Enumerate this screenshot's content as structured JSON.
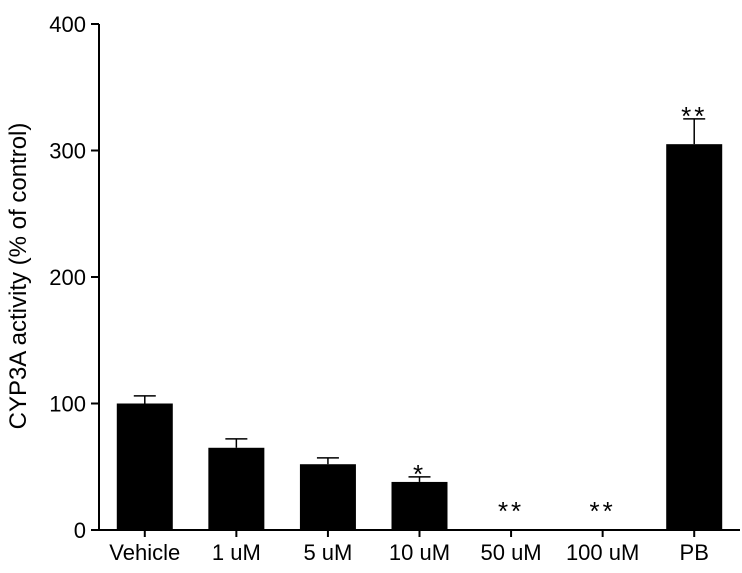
{
  "chart_data": {
    "type": "bar",
    "categories": [
      "Vehicle",
      "1 uM",
      "5 uM",
      "10 uM",
      "50 uM",
      "100 uM",
      "PB"
    ],
    "values": [
      100,
      65,
      52,
      38,
      0,
      0,
      305
    ],
    "errors": [
      6,
      7,
      5,
      4,
      0,
      0,
      20
    ],
    "significance": [
      "",
      "",
      "",
      "*",
      "**",
      "**",
      "**"
    ],
    "ylabel": "CYP3A activity (% of control)",
    "xlabel": "",
    "ylim": [
      0,
      400
    ],
    "yticks": [
      0,
      100,
      200,
      300,
      400
    ],
    "bar_color": "#000000",
    "grid": false
  }
}
